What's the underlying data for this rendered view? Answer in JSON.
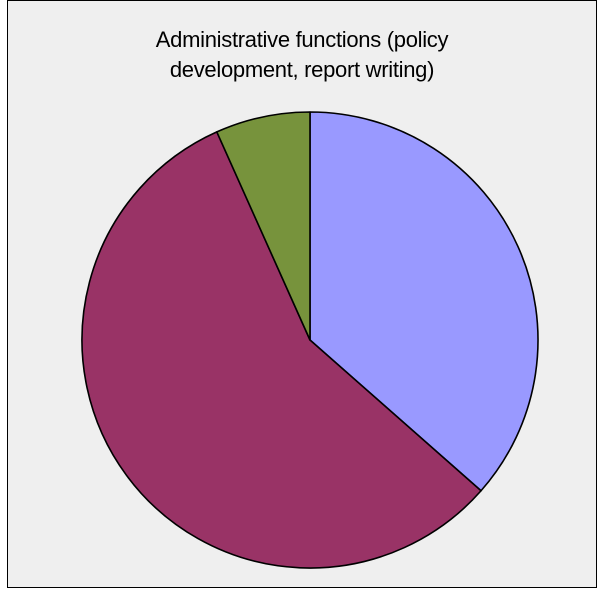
{
  "chart_data": {
    "type": "pie",
    "title_lines": [
      "Administrative functions (policy",
      "development, report writing)"
    ],
    "start_angle_deg": 0,
    "direction": "clockwise",
    "slices": [
      {
        "value": 36.5,
        "color": "#9999ff"
      },
      {
        "value": 56.8,
        "color": "#993366"
      },
      {
        "value": 6.7,
        "color": "#77933c"
      }
    ],
    "legend": "none",
    "data_labels": "none"
  }
}
